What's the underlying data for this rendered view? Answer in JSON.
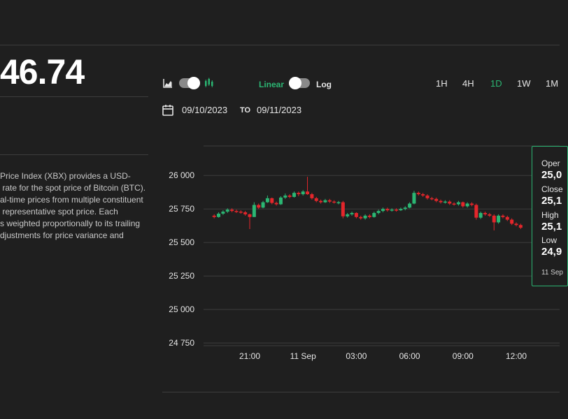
{
  "price": {
    "value": "46.74"
  },
  "description": {
    "lines": [
      "Price Index (XBX) provides a USD-",
      " rate for the spot price of Bitcoin (BTC).",
      "al-time prices from multiple constituent",
      " representative spot price. Each",
      "s weighted proportionally to its trailing",
      "djustments for price variance and"
    ]
  },
  "controls": {
    "chart_type_toggle": {
      "left_icon": "area-chart-icon",
      "right_icon": "candlestick-icon"
    },
    "scale": {
      "linear_label": "Linear",
      "log_label": "Log",
      "selected": "Linear"
    },
    "intervals": [
      "1H",
      "4H",
      "1D",
      "1W",
      "1M"
    ],
    "selected_interval": "1D",
    "date_range": {
      "from": "09/10/2023",
      "to_label": "TO",
      "to": "09/11/2023"
    }
  },
  "colors": {
    "accent": "#2bb673",
    "up": "#2bb673",
    "down": "#e4262b",
    "background": "#1f1f1f",
    "gridline": "#3d3d3d"
  },
  "tooltip": {
    "open_label": "Oper",
    "open_value": "25,0",
    "close_label": "Close",
    "close_value": "25,1",
    "high_label": "High",
    "high_value": "25,1",
    "low_label": "Low",
    "low_value": "24,9",
    "date": "11 Sep"
  },
  "chart_data": {
    "type": "candlestick",
    "title": "",
    "xlabel": "",
    "ylabel": "",
    "y_ticks": [
      26000,
      25750,
      25500,
      25250,
      25000,
      24750
    ],
    "y_tick_labels": [
      "26 000",
      "25 750",
      "25 500",
      "25 250",
      "25 000",
      "24 750"
    ],
    "ylim": [
      24730,
      26220
    ],
    "x_ticks": [
      "21:00",
      "11 Sep",
      "03:00",
      "06:00",
      "09:00",
      "12:00"
    ],
    "x_tick_hours": [
      21,
      24,
      27,
      30,
      33,
      36
    ],
    "grid": true,
    "candles": [
      {
        "h": 19.0,
        "o": 25700,
        "c": 25690,
        "hi": 25710,
        "lo": 25680
      },
      {
        "h": 19.25,
        "o": 25690,
        "c": 25715,
        "hi": 25725,
        "lo": 25685
      },
      {
        "h": 19.5,
        "o": 25715,
        "c": 25730,
        "hi": 25740,
        "lo": 25705
      },
      {
        "h": 19.75,
        "o": 25730,
        "c": 25745,
        "hi": 25755,
        "lo": 25720
      },
      {
        "h": 20.0,
        "o": 25745,
        "c": 25735,
        "hi": 25755,
        "lo": 25725
      },
      {
        "h": 20.25,
        "o": 25735,
        "c": 25730,
        "hi": 25745,
        "lo": 25720
      },
      {
        "h": 20.5,
        "o": 25730,
        "c": 25725,
        "hi": 25740,
        "lo": 25715
      },
      {
        "h": 20.75,
        "o": 25725,
        "c": 25710,
        "hi": 25735,
        "lo": 25700
      },
      {
        "h": 21.0,
        "o": 25710,
        "c": 25690,
        "hi": 25715,
        "lo": 25600
      },
      {
        "h": 21.25,
        "o": 25690,
        "c": 25780,
        "hi": 25800,
        "lo": 25690
      },
      {
        "h": 21.5,
        "o": 25780,
        "c": 25760,
        "hi": 25790,
        "lo": 25750
      },
      {
        "h": 21.75,
        "o": 25760,
        "c": 25800,
        "hi": 25810,
        "lo": 25755
      },
      {
        "h": 22.0,
        "o": 25800,
        "c": 25830,
        "hi": 25850,
        "lo": 25795
      },
      {
        "h": 22.25,
        "o": 25830,
        "c": 25795,
        "hi": 25835,
        "lo": 25785
      },
      {
        "h": 22.5,
        "o": 25795,
        "c": 25785,
        "hi": 25805,
        "lo": 25775
      },
      {
        "h": 22.75,
        "o": 25785,
        "c": 25835,
        "hi": 25845,
        "lo": 25780
      },
      {
        "h": 23.0,
        "o": 25835,
        "c": 25850,
        "hi": 25865,
        "lo": 25825
      },
      {
        "h": 23.25,
        "o": 25850,
        "c": 25840,
        "hi": 25860,
        "lo": 25830
      },
      {
        "h": 23.5,
        "o": 25840,
        "c": 25870,
        "hi": 25880,
        "lo": 25835
      },
      {
        "h": 23.75,
        "o": 25870,
        "c": 25860,
        "hi": 25880,
        "lo": 25845
      },
      {
        "h": 24.0,
        "o": 25860,
        "c": 25880,
        "hi": 25890,
        "lo": 25850
      },
      {
        "h": 24.25,
        "o": 25880,
        "c": 25860,
        "hi": 25990,
        "lo": 25855
      },
      {
        "h": 24.5,
        "o": 25860,
        "c": 25830,
        "hi": 25870,
        "lo": 25820
      },
      {
        "h": 24.75,
        "o": 25830,
        "c": 25810,
        "hi": 25840,
        "lo": 25800
      },
      {
        "h": 25.0,
        "o": 25810,
        "c": 25800,
        "hi": 25820,
        "lo": 25790
      },
      {
        "h": 25.25,
        "o": 25800,
        "c": 25815,
        "hi": 25825,
        "lo": 25795
      },
      {
        "h": 25.5,
        "o": 25815,
        "c": 25805,
        "hi": 25825,
        "lo": 25795
      },
      {
        "h": 25.75,
        "o": 25805,
        "c": 25800,
        "hi": 25815,
        "lo": 25790
      },
      {
        "h": 26.0,
        "o": 25800,
        "c": 25800,
        "hi": 25810,
        "lo": 25785
      },
      {
        "h": 26.25,
        "o": 25800,
        "c": 25695,
        "hi": 25810,
        "lo": 25680
      },
      {
        "h": 26.5,
        "o": 25695,
        "c": 25710,
        "hi": 25720,
        "lo": 25685
      },
      {
        "h": 26.75,
        "o": 25710,
        "c": 25720,
        "hi": 25730,
        "lo": 25700
      },
      {
        "h": 27.0,
        "o": 25720,
        "c": 25690,
        "hi": 25725,
        "lo": 25680
      },
      {
        "h": 27.25,
        "o": 25690,
        "c": 25680,
        "hi": 25700,
        "lo": 25670
      },
      {
        "h": 27.5,
        "o": 25680,
        "c": 25700,
        "hi": 25710,
        "lo": 25670
      },
      {
        "h": 27.75,
        "o": 25700,
        "c": 25690,
        "hi": 25710,
        "lo": 25680
      },
      {
        "h": 28.0,
        "o": 25690,
        "c": 25720,
        "hi": 25730,
        "lo": 25685
      },
      {
        "h": 28.25,
        "o": 25720,
        "c": 25735,
        "hi": 25745,
        "lo": 25710
      },
      {
        "h": 28.5,
        "o": 25735,
        "c": 25750,
        "hi": 25760,
        "lo": 25725
      },
      {
        "h": 28.75,
        "o": 25750,
        "c": 25740,
        "hi": 25760,
        "lo": 25730
      },
      {
        "h": 29.0,
        "o": 25740,
        "c": 25745,
        "hi": 25755,
        "lo": 25730
      },
      {
        "h": 29.25,
        "o": 25745,
        "c": 25740,
        "hi": 25755,
        "lo": 25730
      },
      {
        "h": 29.5,
        "o": 25740,
        "c": 25750,
        "hi": 25760,
        "lo": 25735
      },
      {
        "h": 29.75,
        "o": 25750,
        "c": 25760,
        "hi": 25770,
        "lo": 25740
      },
      {
        "h": 30.0,
        "o": 25760,
        "c": 25790,
        "hi": 25800,
        "lo": 25755
      },
      {
        "h": 30.25,
        "o": 25790,
        "c": 25870,
        "hi": 25885,
        "lo": 25785
      },
      {
        "h": 30.5,
        "o": 25870,
        "c": 25860,
        "hi": 25880,
        "lo": 25850
      },
      {
        "h": 30.75,
        "o": 25860,
        "c": 25850,
        "hi": 25870,
        "lo": 25840
      },
      {
        "h": 31.0,
        "o": 25850,
        "c": 25830,
        "hi": 25860,
        "lo": 25820
      },
      {
        "h": 31.25,
        "o": 25830,
        "c": 25825,
        "hi": 25840,
        "lo": 25815
      },
      {
        "h": 31.5,
        "o": 25825,
        "c": 25810,
        "hi": 25835,
        "lo": 25800
      },
      {
        "h": 31.75,
        "o": 25810,
        "c": 25800,
        "hi": 25820,
        "lo": 25790
      },
      {
        "h": 32.0,
        "o": 25800,
        "c": 25805,
        "hi": 25815,
        "lo": 25790
      },
      {
        "h": 32.25,
        "o": 25805,
        "c": 25790,
        "hi": 25815,
        "lo": 25780
      },
      {
        "h": 32.5,
        "o": 25790,
        "c": 25785,
        "hi": 25800,
        "lo": 25775
      },
      {
        "h": 32.75,
        "o": 25785,
        "c": 25800,
        "hi": 25810,
        "lo": 25775
      },
      {
        "h": 33.0,
        "o": 25800,
        "c": 25770,
        "hi": 25805,
        "lo": 25760
      },
      {
        "h": 33.25,
        "o": 25770,
        "c": 25790,
        "hi": 25800,
        "lo": 25760
      },
      {
        "h": 33.5,
        "o": 25790,
        "c": 25780,
        "hi": 25800,
        "lo": 25770
      },
      {
        "h": 33.75,
        "o": 25780,
        "c": 25685,
        "hi": 25790,
        "lo": 25670
      },
      {
        "h": 34.0,
        "o": 25685,
        "c": 25720,
        "hi": 25730,
        "lo": 25675
      },
      {
        "h": 34.25,
        "o": 25720,
        "c": 25710,
        "hi": 25730,
        "lo": 25700
      },
      {
        "h": 34.5,
        "o": 25710,
        "c": 25700,
        "hi": 25720,
        "lo": 25690
      },
      {
        "h": 34.75,
        "o": 25700,
        "c": 25650,
        "hi": 25710,
        "lo": 25590
      },
      {
        "h": 35.0,
        "o": 25650,
        "c": 25700,
        "hi": 25710,
        "lo": 25640
      },
      {
        "h": 35.25,
        "o": 25700,
        "c": 25690,
        "hi": 25710,
        "lo": 25680
      },
      {
        "h": 35.5,
        "o": 25690,
        "c": 25670,
        "hi": 25700,
        "lo": 25660
      },
      {
        "h": 35.75,
        "o": 25670,
        "c": 25640,
        "hi": 25680,
        "lo": 25630
      },
      {
        "h": 36.0,
        "o": 25640,
        "c": 25630,
        "hi": 25650,
        "lo": 25620
      },
      {
        "h": 36.25,
        "o": 25630,
        "c": 25610,
        "hi": 25640,
        "lo": 25600
      }
    ]
  }
}
